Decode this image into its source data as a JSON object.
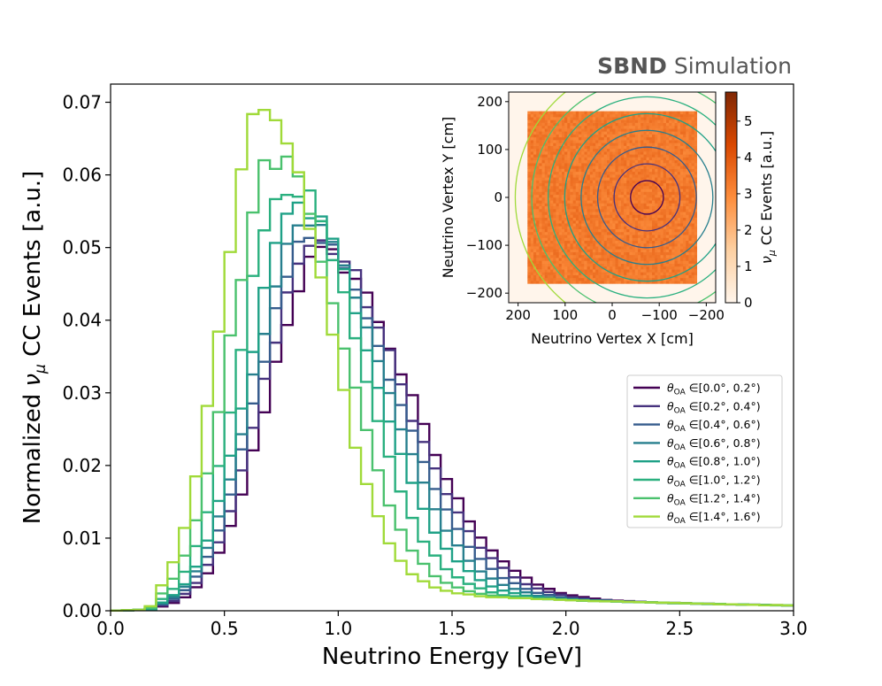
{
  "banner": {
    "bold": "SBND",
    "rest": " Simulation"
  },
  "chart_data": [
    {
      "type": "line",
      "subtype": "step-histogram",
      "xlabel": "Neutrino Energy [GeV]",
      "ylabel_prefix": "Normalized ",
      "ylabel_symbol": "ν",
      "ylabel_sub": "μ",
      "ylabel_suffix": " CC Events [a.u.]",
      "xlim": [
        0.0,
        3.0
      ],
      "ylim": [
        0.0,
        0.0725
      ],
      "xticks": [
        "0.0",
        "0.5",
        "1.0",
        "1.5",
        "2.0",
        "2.5",
        "3.0"
      ],
      "xtick_values": [
        0.0,
        0.5,
        1.0,
        1.5,
        2.0,
        2.5,
        3.0
      ],
      "yticks": [
        "0.00",
        "0.01",
        "0.02",
        "0.03",
        "0.04",
        "0.05",
        "0.06",
        "0.07"
      ],
      "ytick_values": [
        0.0,
        0.01,
        0.02,
        0.03,
        0.04,
        0.05,
        0.06,
        0.07
      ],
      "grid": false,
      "legend_position": "center-right",
      "bin_width": 0.05,
      "series": [
        {
          "name": "θ_OA ∈[0.0°, 0.2°)",
          "label_range": "∈[0.0°, 0.2°)",
          "color": "#440154",
          "peak_x": 0.925,
          "peak_y": 0.049,
          "sigma_left": 0.235,
          "sigma_right": 0.375
        },
        {
          "name": "θ_OA ∈[0.2°, 0.4°)",
          "label_range": "∈[0.2°, 0.4°)",
          "color": "#46327e",
          "peak_x": 0.9,
          "peak_y": 0.0505,
          "sigma_left": 0.232,
          "sigma_right": 0.365
        },
        {
          "name": "θ_OA ∈[0.4°, 0.6°)",
          "label_range": "∈[0.4°, 0.6°)",
          "color": "#365c8d",
          "peak_x": 0.875,
          "peak_y": 0.0515,
          "sigma_left": 0.228,
          "sigma_right": 0.352
        },
        {
          "name": "θ_OA ∈[0.6°, 0.8°)",
          "label_range": "∈[0.6°, 0.8°)",
          "color": "#277f8e",
          "peak_x": 0.85,
          "peak_y": 0.0535,
          "sigma_left": 0.222,
          "sigma_right": 0.335
        },
        {
          "name": "θ_OA ∈[0.8°, 1.0°)",
          "label_range": "∈[0.8°, 1.0°)",
          "color": "#1fa187",
          "peak_x": 0.825,
          "peak_y": 0.0555,
          "sigma_left": 0.215,
          "sigma_right": 0.318
        },
        {
          "name": "θ_OA ∈[1.0°, 1.2°)",
          "label_range": "∈[1.0°, 1.2°)",
          "color": "#2ab07f",
          "peak_x": 0.775,
          "peak_y": 0.059,
          "sigma_left": 0.205,
          "sigma_right": 0.3
        },
        {
          "name": "θ_OA ∈[1.2°, 1.4°)",
          "label_range": "∈[1.2°, 1.4°)",
          "color": "#4ac16d",
          "peak_x": 0.725,
          "peak_y": 0.0625,
          "sigma_left": 0.196,
          "sigma_right": 0.283
        },
        {
          "name": "θ_OA ∈[1.4°, 1.6°)",
          "label_range": "∈[1.4°, 1.6°)",
          "color": "#a0da39",
          "peak_x": 0.675,
          "peak_y": 0.069,
          "sigma_left": 0.185,
          "sigma_right": 0.262
        }
      ]
    },
    {
      "type": "heatmap",
      "xlabel": "Neutrino Vertex X [cm]",
      "ylabel": "Neutrino Vertex Y [cm]",
      "xlim": [
        220,
        -220
      ],
      "ylim": [
        -220,
        220
      ],
      "detector_extent": [
        -180,
        180
      ],
      "beam_center": [
        -74,
        0
      ],
      "xticks": [
        "200",
        "100",
        "0",
        "−100",
        "−200"
      ],
      "xtick_values": [
        200,
        100,
        0,
        -100,
        -200
      ],
      "yticks": [
        "−200",
        "−100",
        "0",
        "100",
        "200"
      ],
      "ytick_values": [
        -200,
        -100,
        0,
        100,
        200
      ],
      "contour_radii_cm": [
        35,
        70,
        105,
        140,
        175,
        210,
        245,
        280
      ],
      "colorbar": {
        "label_symbol": "ν",
        "label_sub": "μ",
        "label_suffix": " CC Events [a.u.]",
        "min": 0,
        "max": 5.8,
        "ticks": [
          "0",
          "1",
          "2",
          "3",
          "4",
          "5"
        ],
        "tick_values": [
          0,
          1,
          2,
          3,
          4,
          5
        ],
        "cmap": [
          "#fff5eb",
          "#fdd0a2",
          "#fd8d3c",
          "#d94801",
          "#7f2704"
        ]
      },
      "typical_density": 3.3
    }
  ]
}
